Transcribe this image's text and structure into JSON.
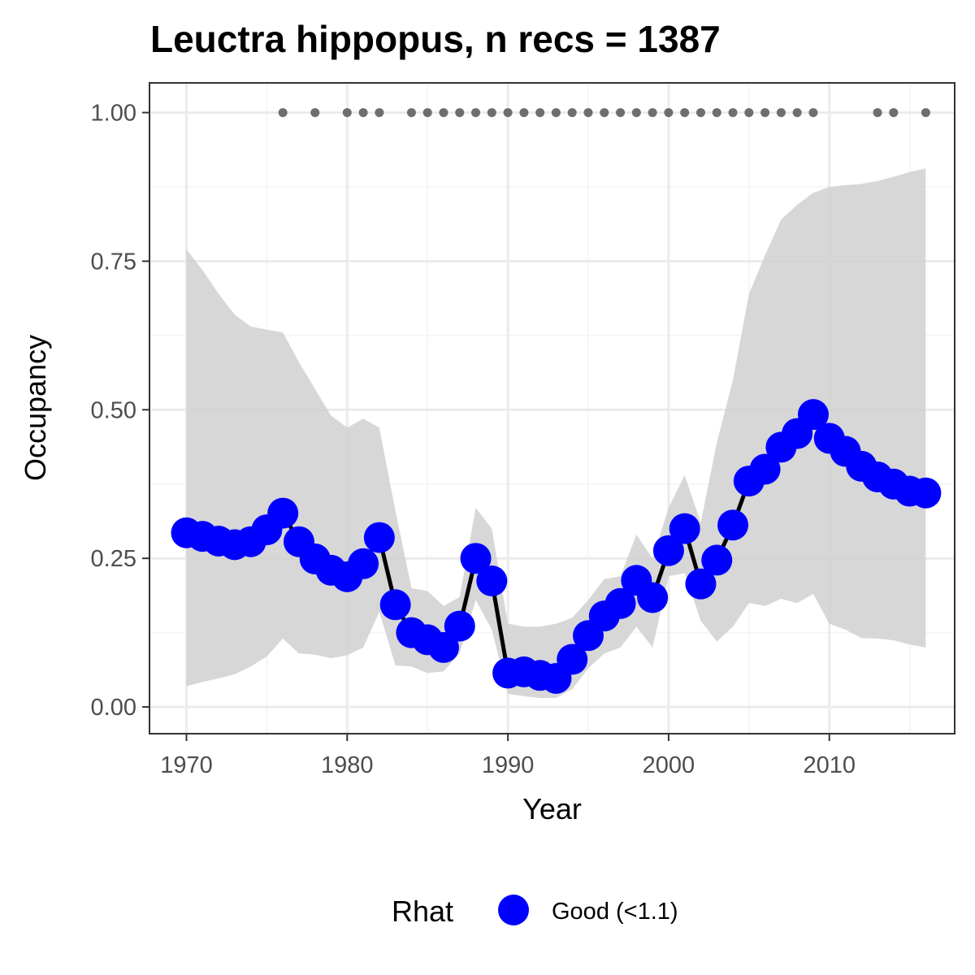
{
  "chart_data": {
    "type": "line",
    "title": "Leuctra hippopus, n recs = 1387",
    "xlabel": "Year",
    "ylabel": "Occupancy",
    "xlim": [
      1967.7,
      2017.8
    ],
    "ylim": [
      -0.045,
      1.05
    ],
    "x_ticks": [
      1970,
      1980,
      1990,
      2000,
      2010
    ],
    "x_tick_labels": [
      "1970",
      "1980",
      "1990",
      "2000",
      "2010"
    ],
    "y_ticks": [
      0,
      0.25,
      0.5,
      0.75,
      1.0
    ],
    "y_tick_labels": [
      "0.00",
      "0.25",
      "0.50",
      "0.75",
      "1.00"
    ],
    "grid": true,
    "x": [
      1970,
      1971,
      1972,
      1973,
      1974,
      1975,
      1976,
      1977,
      1978,
      1979,
      1980,
      1981,
      1982,
      1983,
      1984,
      1985,
      1986,
      1987,
      1988,
      1989,
      1990,
      1991,
      1992,
      1993,
      1994,
      1995,
      1996,
      1997,
      1998,
      1999,
      2000,
      2001,
      2002,
      2003,
      2004,
      2005,
      2006,
      2007,
      2008,
      2009,
      2010,
      2011,
      2012,
      2013,
      2014,
      2015,
      2016
    ],
    "series": [
      {
        "legend_label": "Good (<1.1)",
        "values": [
          0.293,
          0.287,
          0.279,
          0.273,
          0.278,
          0.298,
          0.326,
          0.278,
          0.249,
          0.23,
          0.219,
          0.241,
          0.285,
          0.172,
          0.125,
          0.113,
          0.1,
          0.136,
          0.25,
          0.212,
          0.057,
          0.059,
          0.053,
          0.048,
          0.08,
          0.12,
          0.153,
          0.174,
          0.213,
          0.184,
          0.263,
          0.3,
          0.207,
          0.247,
          0.306,
          0.38,
          0.4,
          0.437,
          0.46,
          0.492,
          0.452,
          0.43,
          0.405,
          0.387,
          0.375,
          0.363,
          0.36
        ]
      }
    ],
    "ribbon": {
      "upper": [
        0.77,
        0.735,
        0.695,
        0.66,
        0.64,
        0.635,
        0.63,
        0.58,
        0.535,
        0.49,
        0.47,
        0.485,
        0.47,
        0.33,
        0.2,
        0.195,
        0.17,
        0.185,
        0.335,
        0.3,
        0.14,
        0.135,
        0.135,
        0.14,
        0.15,
        0.18,
        0.215,
        0.22,
        0.29,
        0.25,
        0.335,
        0.39,
        0.31,
        0.445,
        0.55,
        0.695,
        0.76,
        0.82,
        0.845,
        0.865,
        0.875,
        0.878,
        0.88,
        0.885,
        0.892,
        0.9,
        0.906
      ],
      "lower": [
        0.035,
        0.042,
        0.048,
        0.055,
        0.068,
        0.085,
        0.115,
        0.09,
        0.088,
        0.082,
        0.087,
        0.1,
        0.16,
        0.07,
        0.068,
        0.057,
        0.06,
        0.09,
        0.18,
        0.13,
        0.022,
        0.018,
        0.015,
        0.015,
        0.03,
        0.065,
        0.09,
        0.1,
        0.135,
        0.1,
        0.22,
        0.225,
        0.145,
        0.11,
        0.135,
        0.175,
        0.17,
        0.182,
        0.175,
        0.19,
        0.14,
        0.13,
        0.116,
        0.115,
        0.112,
        0.105,
        0.1
      ]
    },
    "record_years": [
      1976,
      1978,
      1980,
      1981,
      1982,
      1984,
      1985,
      1986,
      1987,
      1988,
      1989,
      1990,
      1991,
      1992,
      1993,
      1994,
      1995,
      1996,
      1997,
      1998,
      1999,
      2000,
      2001,
      2002,
      2003,
      2004,
      2005,
      2006,
      2007,
      2008,
      2009,
      2013,
      2014,
      2016
    ],
    "record_y": 1.0,
    "legend": {
      "title": "Rhat",
      "entries": [
        {
          "label": "Good (<1.1)",
          "color": "#0000FF"
        }
      ],
      "position": "bottom"
    },
    "colors": {
      "points": "#0000FF",
      "line": "#000000",
      "ribbon": "#D0D0D0",
      "records": "#6e6e6e",
      "grid_major": "#EBEBEB",
      "grid_minor": "#F3F3F3",
      "panel_border": "#333333"
    }
  }
}
